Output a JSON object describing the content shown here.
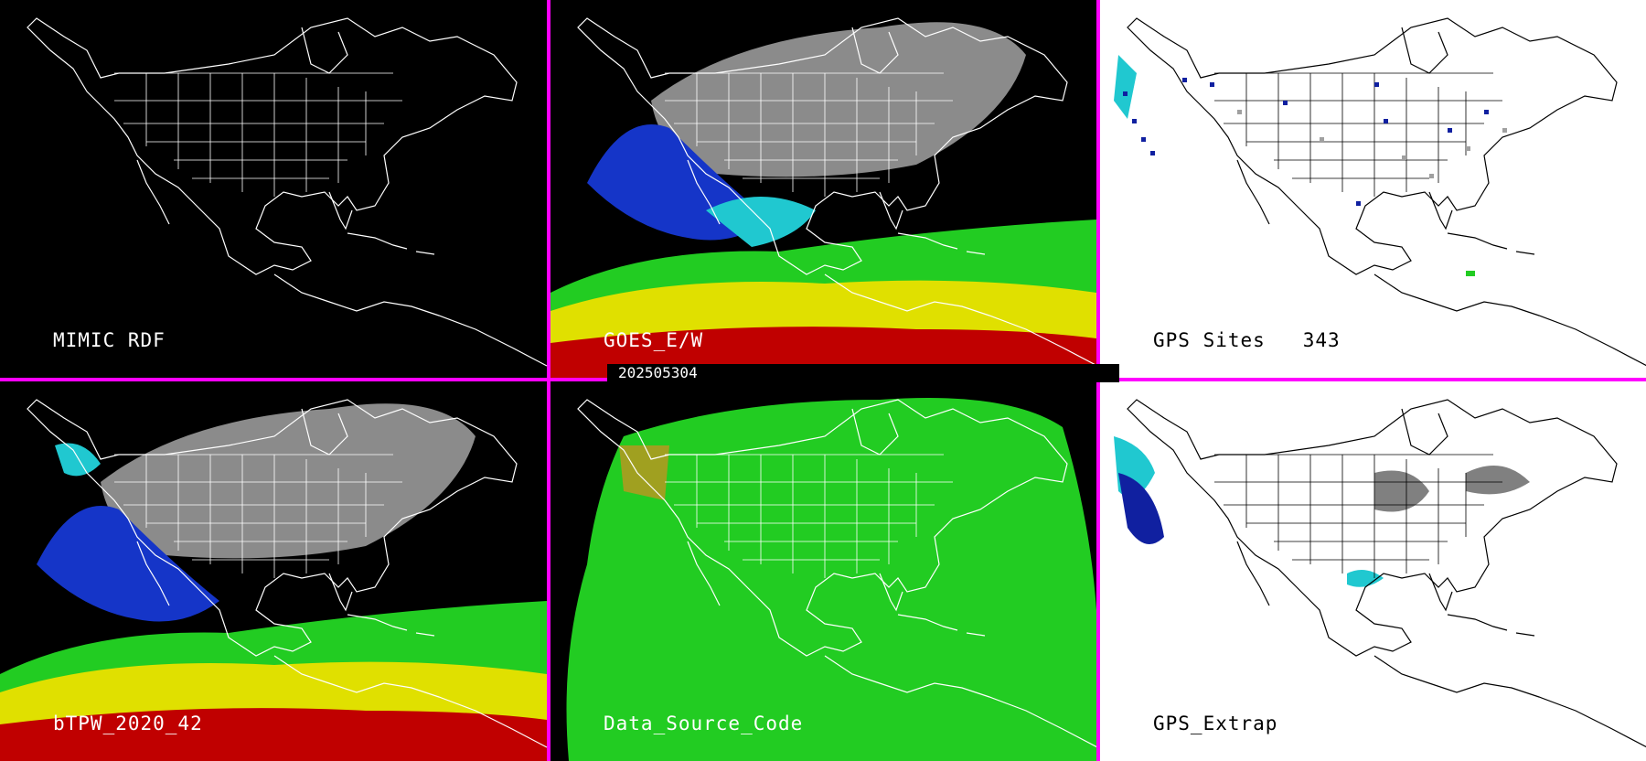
{
  "colors": {
    "frame": "#ff00ff",
    "coastline_dark": "#ffffff",
    "coastline_light": "#000000",
    "moist_high": "#c00000",
    "moist_mid": "#e6e600",
    "moist_low": "#22cc22",
    "dry_cyan": "#20c8d0",
    "dry_blue": "#1030c0",
    "gray": "#a0a0a0"
  },
  "panels": [
    {
      "label": "MIMIC RDF"
    },
    {
      "label": "GOES_E/W"
    },
    {
      "label": "GPS Sites   343"
    },
    {
      "label": "bTPW_2020_42"
    },
    {
      "label": "Data_Source_Code"
    },
    {
      "label": "GPS_Extrap"
    }
  ],
  "timestamp": "202505304"
}
